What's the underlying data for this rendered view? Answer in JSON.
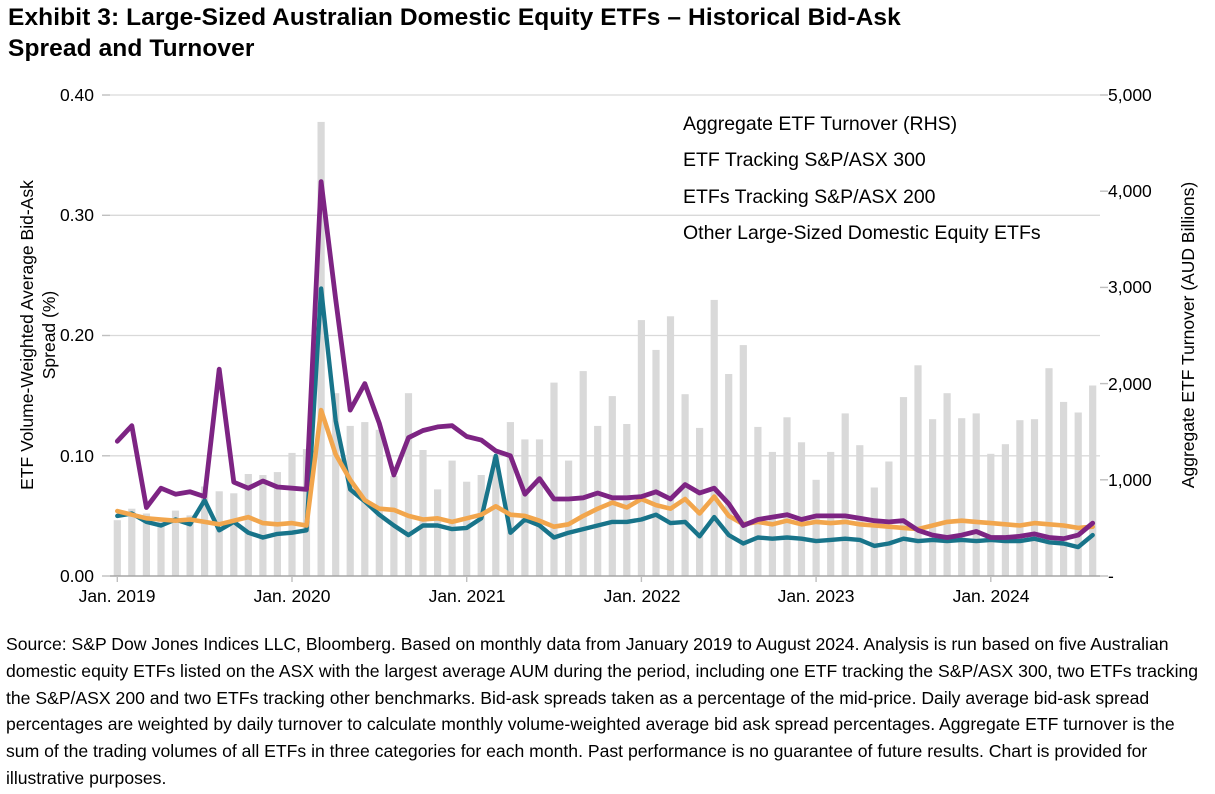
{
  "title": {
    "line1": "Exhibit 3: Large-Sized Australian Domestic Equity ETFs – Historical Bid-Ask",
    "line2": "Spread and Turnover"
  },
  "footer_text": "Source: S&P Dow Jones Indices LLC, Bloomberg. Based on monthly data from January 2019 to August 2024. Analysis is run based on five Australian domestic equity ETFs listed on the ASX with the largest average AUM during the period, including one ETF tracking the S&P/ASX 300, two ETFs tracking the S&P/ASX 200 and two ETFs tracking other benchmarks. Bid-ask spreads taken as a percentage of the mid-price. Daily average bid-ask spread percentages are weighted by daily turnover to calculate monthly volume-weighted average bid ask spread percentages. Aggregate ETF turnover is the sum of the trading volumes of all ETFs in three categories for each month. Past performance is no guarantee of future results. Chart is provided for illustrative purposes.",
  "colors": {
    "turnover_bar": "#d9d9d9",
    "asx300_line": "#18748a",
    "asx200_line": "#f2a64d",
    "other_etfs_line": "#7d2483",
    "gridline": "#d9d9d9",
    "axis": "#a6a6a6",
    "tick": "#bfbfbf",
    "text": "#000000"
  },
  "chart_data": {
    "type": "combo-bar-line",
    "period": {
      "start": "Jan. 2019",
      "end": "Aug. 2024",
      "frequency": "monthly",
      "n_months": 68
    },
    "left_axis": {
      "label_line1": "ETF Volume-Weighted Average Bid-Ask",
      "label_line2": "Spread (%)",
      "min": 0,
      "max": 0.4,
      "ticks": [
        "0.40",
        "0.30",
        "0.20",
        "0.10",
        "0.00"
      ],
      "tick_values": [
        0.4,
        0.3,
        0.2,
        0.1,
        0.0
      ],
      "grid_values": [
        0.4,
        0.3,
        0.2,
        0.1
      ]
    },
    "right_axis": {
      "label": "Aggregate ETF Turnover (AUD Billions)",
      "min": 0,
      "max": 5000,
      "ticks": [
        "5,000",
        "4,000",
        "3,000",
        "2,000",
        "1,000",
        "-"
      ],
      "tick_values": [
        5000,
        4000,
        3000,
        2000,
        1000,
        0
      ]
    },
    "x_axis": {
      "tick_labels": [
        "Jan. 2019",
        "Jan. 2020",
        "Jan. 2021",
        "Jan. 2022",
        "Jan. 2023",
        "Jan. 2024"
      ],
      "tick_month_indices": [
        0,
        12,
        24,
        36,
        48,
        60
      ]
    },
    "legend_position": "top-right-inside",
    "series": [
      {
        "name": "Aggregate ETF Turnover (RHS)",
        "type": "bar",
        "axis": "right",
        "color": "#d9d9d9",
        "values": [
          580,
          700,
          650,
          600,
          680,
          630,
          930,
          880,
          860,
          1060,
          1050,
          1080,
          1280,
          1320,
          4720,
          1900,
          1560,
          1600,
          1520,
          1040,
          1900,
          1310,
          900,
          1200,
          980,
          1050,
          1250,
          1600,
          1420,
          1420,
          2010,
          1200,
          2130,
          1560,
          1870,
          1580,
          2660,
          2350,
          2700,
          1890,
          1540,
          2870,
          2100,
          2400,
          1550,
          1290,
          1650,
          1390,
          1000,
          1290,
          1690,
          1360,
          920,
          1190,
          1860,
          2190,
          1630,
          1900,
          1640,
          1690,
          1270,
          1370,
          1620,
          1630,
          2160,
          1810,
          1700,
          1980
        ]
      },
      {
        "name": "ETF Tracking S&P/ASX 300",
        "type": "line",
        "axis": "left",
        "color": "#18748a",
        "stroke_width": 4.4,
        "values": [
          0.05,
          0.052,
          0.045,
          0.042,
          0.047,
          0.043,
          0.063,
          0.038,
          0.045,
          0.036,
          0.032,
          0.035,
          0.036,
          0.038,
          0.239,
          0.129,
          0.072,
          0.062,
          0.051,
          0.042,
          0.034,
          0.042,
          0.042,
          0.039,
          0.04,
          0.048,
          0.1,
          0.036,
          0.047,
          0.042,
          0.032,
          0.036,
          0.039,
          0.042,
          0.045,
          0.045,
          0.047,
          0.051,
          0.044,
          0.045,
          0.033,
          0.049,
          0.034,
          0.027,
          0.032,
          0.031,
          0.032,
          0.031,
          0.029,
          0.03,
          0.031,
          0.03,
          0.025,
          0.027,
          0.031,
          0.029,
          0.03,
          0.029,
          0.03,
          0.029,
          0.03,
          0.029,
          0.029,
          0.031,
          0.028,
          0.027,
          0.024,
          0.034
        ]
      },
      {
        "name": "ETFs Tracking S&P/ASX 200",
        "type": "line",
        "axis": "left",
        "color": "#f2a64d",
        "stroke_width": 4.6,
        "values": [
          0.054,
          0.051,
          0.048,
          0.047,
          0.046,
          0.047,
          0.045,
          0.043,
          0.046,
          0.049,
          0.044,
          0.043,
          0.044,
          0.042,
          0.138,
          0.101,
          0.08,
          0.063,
          0.056,
          0.055,
          0.05,
          0.047,
          0.048,
          0.045,
          0.048,
          0.051,
          0.058,
          0.051,
          0.05,
          0.046,
          0.041,
          0.043,
          0.05,
          0.056,
          0.061,
          0.057,
          0.064,
          0.059,
          0.056,
          0.064,
          0.052,
          0.066,
          0.05,
          0.043,
          0.045,
          0.043,
          0.046,
          0.043,
          0.045,
          0.044,
          0.045,
          0.043,
          0.042,
          0.041,
          0.04,
          0.039,
          0.042,
          0.045,
          0.046,
          0.045,
          0.044,
          0.043,
          0.042,
          0.044,
          0.043,
          0.042,
          0.04,
          0.041
        ]
      },
      {
        "name": "Other Large-Sized Domestic Equity ETFs",
        "type": "line",
        "axis": "left",
        "color": "#7d2483",
        "stroke_width": 4.8,
        "values": [
          0.112,
          0.125,
          0.057,
          0.073,
          0.068,
          0.07,
          0.066,
          0.172,
          0.078,
          0.073,
          0.079,
          0.074,
          0.073,
          0.072,
          0.328,
          0.23,
          0.138,
          0.16,
          0.127,
          0.084,
          0.115,
          0.121,
          0.124,
          0.125,
          0.116,
          0.113,
          0.104,
          0.1,
          0.068,
          0.081,
          0.064,
          0.064,
          0.065,
          0.069,
          0.065,
          0.065,
          0.066,
          0.07,
          0.064,
          0.076,
          0.069,
          0.073,
          0.06,
          0.042,
          0.047,
          0.049,
          0.051,
          0.047,
          0.05,
          0.05,
          0.05,
          0.048,
          0.046,
          0.045,
          0.046,
          0.038,
          0.034,
          0.032,
          0.034,
          0.037,
          0.032,
          0.032,
          0.033,
          0.035,
          0.032,
          0.031,
          0.034,
          0.044
        ]
      }
    ]
  }
}
